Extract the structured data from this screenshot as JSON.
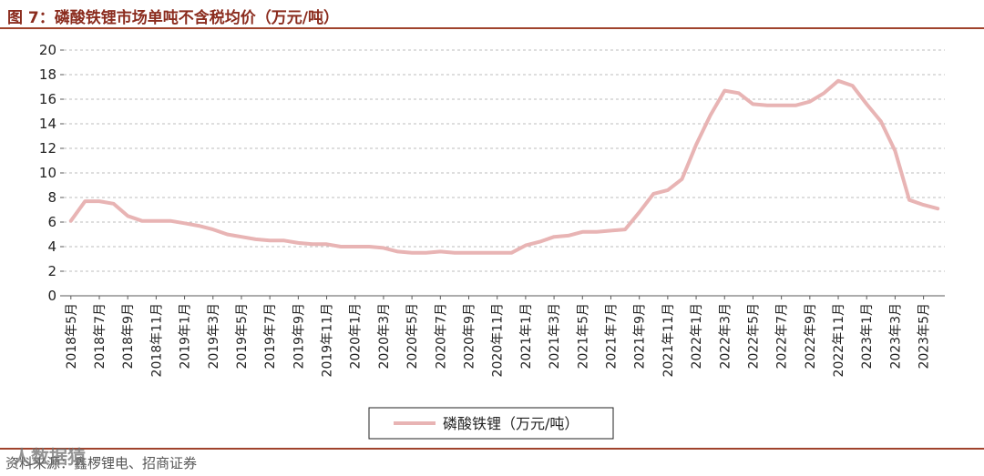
{
  "header": {
    "title": "图 7：磷酸铁锂市场单吨不含税均价（万元/吨）"
  },
  "footer": {
    "source": "资料来源：鑫椤锂电、招商证券",
    "watermark": "人数据猿"
  },
  "colors": {
    "line": "#e8b4b4",
    "title": "#8b2c1e",
    "rule": "#a0432c",
    "grid": "#bdbdbd"
  },
  "chart_data": {
    "type": "line",
    "title": "",
    "xlabel": "",
    "ylabel": "",
    "ylim": [
      0,
      20
    ],
    "yticks": [
      0,
      2,
      4,
      6,
      8,
      10,
      12,
      14,
      16,
      18,
      20
    ],
    "grid": "horizontal dashed",
    "legend_position": "bottom-center",
    "x_tick_labels": [
      "2018年5月",
      "2018年7月",
      "2018年9月",
      "2018年11月",
      "2019年1月",
      "2019年3月",
      "2019年5月",
      "2019年7月",
      "2019年9月",
      "2019年11月",
      "2020年1月",
      "2020年3月",
      "2020年5月",
      "2020年7月",
      "2020年9月",
      "2020年11月",
      "2021年1月",
      "2021年3月",
      "2021年5月",
      "2021年7月",
      "2021年9月",
      "2021年11月",
      "2022年1月",
      "2022年3月",
      "2022年5月",
      "2022年7月",
      "2022年9月",
      "2022年11月",
      "2023年1月",
      "2023年3月",
      "2023年5月"
    ],
    "x": [
      "2018年5月",
      "2018年6月",
      "2018年7月",
      "2018年8月",
      "2018年9月",
      "2018年10月",
      "2018年11月",
      "2018年12月",
      "2019年1月",
      "2019年2月",
      "2019年3月",
      "2019年4月",
      "2019年5月",
      "2019年6月",
      "2019年7月",
      "2019年8月",
      "2019年9月",
      "2019年10月",
      "2019年11月",
      "2019年12月",
      "2020年1月",
      "2020年2月",
      "2020年3月",
      "2020年4月",
      "2020年5月",
      "2020年6月",
      "2020年7月",
      "2020年8月",
      "2020年9月",
      "2020年10月",
      "2020年11月",
      "2020年12月",
      "2021年1月",
      "2021年2月",
      "2021年3月",
      "2021年4月",
      "2021年5月",
      "2021年6月",
      "2021年7月",
      "2021年8月",
      "2021年9月",
      "2021年10月",
      "2021年11月",
      "2021年12月",
      "2022年1月",
      "2022年2月",
      "2022年3月",
      "2022年4月",
      "2022年5月",
      "2022年6月",
      "2022年7月",
      "2022年8月",
      "2022年9月",
      "2022年10月",
      "2022年11月",
      "2022年12月",
      "2023年1月",
      "2023年2月",
      "2023年3月",
      "2023年4月",
      "2023年5月",
      "2023年6月"
    ],
    "series": [
      {
        "name": "磷酸铁锂（万元/吨）",
        "color": "#e8b4b4",
        "values": [
          6.1,
          7.7,
          7.7,
          7.5,
          6.5,
          6.1,
          6.1,
          6.1,
          5.9,
          5.7,
          5.4,
          5.0,
          4.8,
          4.6,
          4.5,
          4.5,
          4.3,
          4.2,
          4.2,
          4.0,
          4.0,
          4.0,
          3.9,
          3.6,
          3.5,
          3.5,
          3.6,
          3.5,
          3.5,
          3.5,
          3.5,
          3.5,
          4.1,
          4.4,
          4.8,
          4.9,
          5.2,
          5.2,
          5.3,
          5.4,
          6.8,
          8.3,
          8.6,
          9.5,
          12.3,
          14.7,
          16.7,
          16.5,
          15.6,
          15.5,
          15.5,
          15.5,
          15.8,
          16.5,
          17.5,
          17.1,
          15.6,
          14.2,
          11.8,
          7.8,
          7.4,
          7.1
        ]
      }
    ]
  }
}
